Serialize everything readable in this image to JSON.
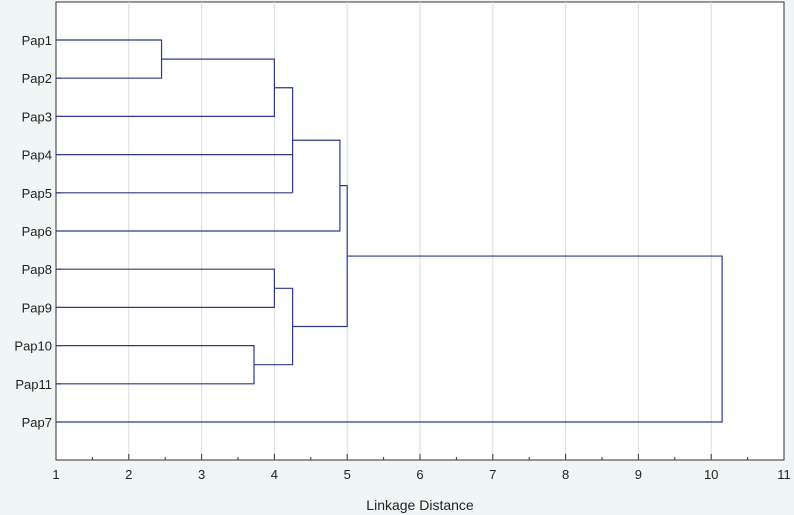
{
  "chart_data": {
    "type": "dendrogram",
    "orientation": "horizontal",
    "xlabel": "Linkage Distance",
    "xlim": [
      1,
      11
    ],
    "xticks": [
      1,
      2,
      3,
      4,
      5,
      6,
      7,
      8,
      9,
      10,
      11
    ],
    "grid": true,
    "leaves": [
      "Pap1",
      "Pap2",
      "Pap3",
      "Pap4",
      "Pap5",
      "Pap6",
      "Pap8",
      "Pap9",
      "Pap10",
      "Pap11",
      "Pap7"
    ],
    "merges": [
      {
        "left": "Pap1",
        "right": "Pap2",
        "height": 2.45
      },
      {
        "left": "Pap10",
        "right": "Pap11",
        "height": 3.72
      },
      {
        "left": "Pap1+Pap2",
        "right": "Pap3",
        "height": 4.0
      },
      {
        "left": "Pap8",
        "right": "Pap9",
        "height": 4.0
      },
      {
        "left": "Pap1+Pap2+Pap3",
        "right": "Pap4+Pap5",
        "height": 4.25
      },
      {
        "left": "Pap8+Pap9",
        "right": "Pap10+Pap11",
        "height": 4.25
      },
      {
        "left": "Pap1..Pap5",
        "right": "Pap6",
        "height": 4.9
      },
      {
        "left": "Pap1..Pap6",
        "right": "Pap8..Pap11",
        "height": 5.0
      },
      {
        "left": "Pap1..Pap11",
        "right": "Pap7",
        "height": 10.15
      }
    ]
  },
  "colors": {
    "background": "#f0f6f6",
    "plot_background": "#ffffff",
    "link": "#2f3a8c",
    "grid": "#d8dede",
    "axis": "#333333"
  }
}
